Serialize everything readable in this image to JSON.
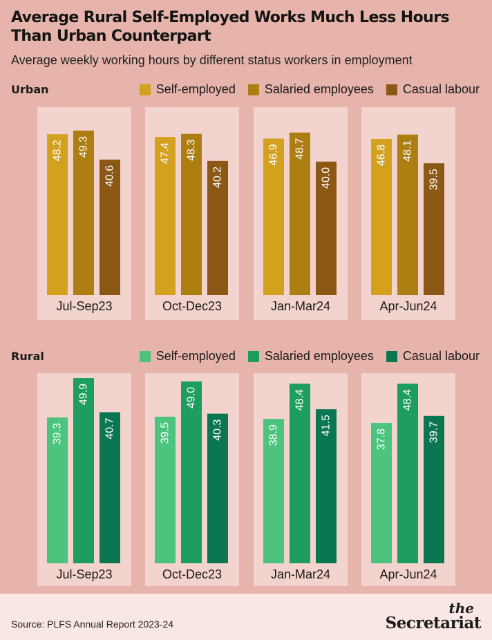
{
  "title": "Average Rural Self-Employed Works Much Less Hours Than Urban Counterpart",
  "subtitle": "Average weekly working hours by different status workers in employment",
  "source": "Source: PLFS Annual Report 2023-24",
  "logo": {
    "the": "the",
    "name": "Secretariat"
  },
  "colors": {
    "background": "#e6b4aa",
    "panel": "#f3d3cd",
    "footer": "#f8e7e3",
    "urban": [
      "#d4a11f",
      "#ad7e12",
      "#8b5815"
    ],
    "rural": [
      "#4cc47e",
      "#1e9e5e",
      "#0b7752"
    ]
  },
  "chart_data": [
    {
      "type": "bar",
      "title": "Urban",
      "categories": [
        "Jul-Sep23",
        "Oct-Dec23",
        "Jan-Mar24",
        "Apr-Jun24"
      ],
      "series": [
        {
          "name": "Self-employed",
          "values": [
            48.2,
            47.4,
            46.9,
            46.8
          ]
        },
        {
          "name": "Salaried employees",
          "values": [
            49.3,
            48.3,
            48.7,
            48.1
          ]
        },
        {
          "name": "Casual labour",
          "values": [
            40.6,
            40.2,
            40.0,
            39.5
          ]
        }
      ],
      "legend_position": "top-right",
      "grid": false
    },
    {
      "type": "bar",
      "title": "Rural",
      "categories": [
        "Jul-Sep23",
        "Oct-Dec23",
        "Jan-Mar24",
        "Apr-Jun24"
      ],
      "series": [
        {
          "name": "Self-employed",
          "values": [
            39.3,
            39.5,
            38.9,
            37.8
          ]
        },
        {
          "name": "Salaried employees",
          "values": [
            49.9,
            49.0,
            48.4,
            48.4
          ]
        },
        {
          "name": "Casual labour",
          "values": [
            40.7,
            40.3,
            41.5,
            39.7
          ]
        }
      ],
      "legend_position": "top-right",
      "grid": false
    }
  ]
}
